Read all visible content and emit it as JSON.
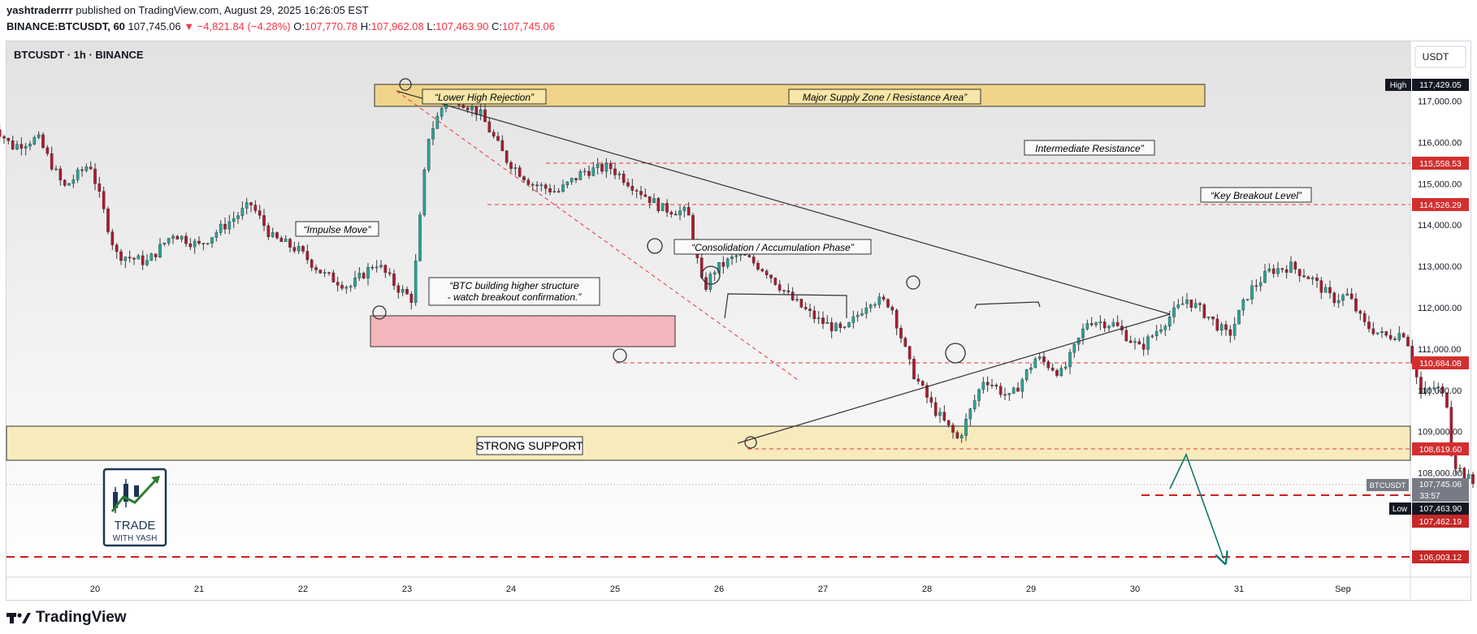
{
  "header": {
    "publisher": "yashtraderrrr",
    "published_text": "published on TradingView.com, August 29, 2025 16:26:05 EST",
    "symbol_line": "BINANCE:BTCUSDT, 60",
    "last": "107,745.06",
    "change": "▼ −4,821.84 (−4.28%)",
    "o_label": "O:",
    "o": "107,770.78",
    "h_label": "H:",
    "h": "107,962.08",
    "l_label": "L:",
    "l": "107,463.90",
    "c_label": "C:",
    "c": "107,745.06"
  },
  "chart_title": "BTCUSDT · 1h · BINANCE",
  "currency_button": "USDT",
  "footer_brand": "TradingView",
  "logo": {
    "line1": "TRADE",
    "line2": "WITH YASH"
  },
  "annotations": {
    "lower_high": "“Lower High Rejection”",
    "supply_zone": "Major Supply Zone / Resistance Area”",
    "intermediate": "Intermediate Resistance”",
    "key_breakout": "“Key Breakout Level”",
    "impulse": "“Impulse Move”",
    "consolidation": "“Consolidation / Accumulation Phase”",
    "btc_line1": "“BTC building higher structure",
    "btc_line2": "- watch breakout confirmation.”",
    "strong_support": "STRONG SUPPORT"
  },
  "price_axis": {
    "ticks": [
      "117,000.00",
      "116,000.00",
      "115,000.00",
      "114,000.00",
      "113,000.00",
      "112,000.00",
      "111,000.00",
      "110,000.00",
      "109,000.00",
      "108,000.00"
    ],
    "tag_high_label": "High",
    "tag_high": "117,429.05",
    "tag_115558": "115,558.53",
    "tag_114526": "114,526.29",
    "tag_110684": "110,684.08",
    "tag_108619": "108,619.60",
    "tag_symbol": "BTCUSDT",
    "tag_last": "107,745.06",
    "tag_countdown": "33:57",
    "tag_low_label": "Low",
    "tag_low": "107,463.90",
    "tag_107462": "107,462.19",
    "tag_106003": "106,003.12"
  },
  "time_axis": [
    "20",
    "21",
    "22",
    "23",
    "24",
    "25",
    "26",
    "27",
    "28",
    "29",
    "30",
    "31",
    "Sep"
  ],
  "colors": {
    "up": "#26a69a",
    "down": "#b2182b",
    "dash": "#e53935",
    "supply": "#f0d48a",
    "support": "#f7e7a8",
    "demand": "#f4b6bd"
  },
  "chart_data": {
    "type": "candlestick",
    "title": "BTCUSDT · 1h · BINANCE",
    "y_range": [
      105800,
      118200
    ],
    "x_range": [
      "Aug 19",
      "Sep 1"
    ],
    "levels": [
      117429.05,
      115558.53,
      114526.29,
      110684.08,
      108619.6,
      107745.06,
      107462.19,
      106003.12
    ],
    "zones": [
      {
        "name": "Major Supply Zone / Resistance Area",
        "from": 116950,
        "to": 117500
      },
      {
        "name": "STRONG SUPPORT",
        "from": 108300,
        "to": 109150
      },
      {
        "name": "demand",
        "from": 111050,
        "to": 111800
      }
    ],
    "path": [
      [
        19.0,
        116500
      ],
      [
        19.2,
        115900
      ],
      [
        19.45,
        116100
      ],
      [
        19.7,
        114900
      ],
      [
        19.95,
        115500
      ],
      [
        20.2,
        113300
      ],
      [
        20.5,
        113100
      ],
      [
        20.75,
        113800
      ],
      [
        21.0,
        113500
      ],
      [
        21.25,
        114000
      ],
      [
        21.5,
        114500
      ],
      [
        21.7,
        113700
      ],
      [
        21.95,
        113400
      ],
      [
        22.2,
        112800
      ],
      [
        22.45,
        112500
      ],
      [
        22.7,
        113100
      ],
      [
        22.9,
        112500
      ],
      [
        23.05,
        112200
      ],
      [
        23.2,
        116100
      ],
      [
        23.4,
        117200
      ],
      [
        23.7,
        116700
      ],
      [
        23.95,
        115600
      ],
      [
        24.2,
        115000
      ],
      [
        24.45,
        114800
      ],
      [
        24.7,
        115300
      ],
      [
        24.95,
        115400
      ],
      [
        25.2,
        114900
      ],
      [
        25.45,
        114400
      ],
      [
        25.7,
        114300
      ],
      [
        25.85,
        112400
      ],
      [
        25.95,
        112900
      ],
      [
        26.2,
        113300
      ],
      [
        26.45,
        112900
      ],
      [
        26.7,
        112200
      ],
      [
        26.95,
        111700
      ],
      [
        27.2,
        111400
      ],
      [
        27.45,
        112200
      ],
      [
        27.65,
        112100
      ],
      [
        27.85,
        110500
      ],
      [
        28.05,
        109600
      ],
      [
        28.3,
        108800
      ],
      [
        28.55,
        110300
      ],
      [
        28.8,
        109800
      ],
      [
        29.05,
        110800
      ],
      [
        29.3,
        110400
      ],
      [
        29.55,
        111700
      ],
      [
        29.8,
        111600
      ],
      [
        30.05,
        111000
      ],
      [
        30.3,
        111700
      ],
      [
        30.5,
        112200
      ],
      [
        30.7,
        111800
      ],
      [
        30.9,
        111300
      ],
      [
        31.1,
        112400
      ],
      [
        31.3,
        112900
      ],
      [
        31.5,
        113000
      ],
      [
        31.7,
        112700
      ],
      [
        31.9,
        112200
      ],
      [
        32.05,
        112300
      ],
      [
        32.2,
        111600
      ],
      [
        32.4,
        111300
      ],
      [
        32.6,
        111400
      ],
      [
        32.75,
        109900
      ],
      [
        32.9,
        110100
      ],
      [
        33.0,
        109700
      ],
      [
        33.05,
        108300
      ],
      [
        33.15,
        108000
      ],
      [
        33.25,
        107745
      ]
    ]
  }
}
